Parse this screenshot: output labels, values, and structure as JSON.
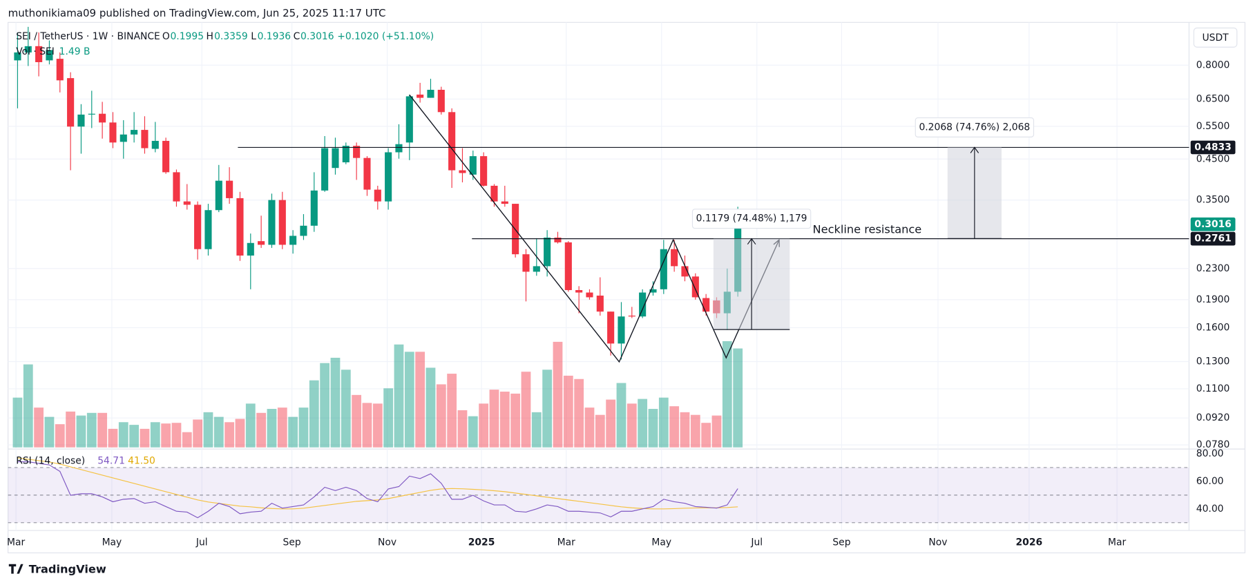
{
  "header": "muthonikiama09 published on TradingView.com, Jun 25, 2025 11:17 UTC",
  "footer": "TradingView",
  "chart_data": {
    "type": "candlestick",
    "title": "SEI / TetherUS · 1W · BINANCE",
    "legend_keys": [
      "O",
      "H",
      "L",
      "C"
    ],
    "change_label": "+0.1020 (+51.10%)",
    "currency": "USDT",
    "up_color": "#089981",
    "down_color": "#f23645",
    "log_scale": true,
    "grid": true,
    "categories": [
      null,
      null,
      null,
      null,
      null,
      null,
      null,
      null,
      null,
      null,
      null,
      null,
      null,
      null,
      null,
      null,
      null,
      null,
      null,
      null,
      null,
      null,
      null,
      null,
      null,
      null,
      null,
      null,
      null,
      null,
      null,
      null,
      null,
      null,
      null,
      null,
      null,
      null,
      null,
      null,
      null,
      null,
      null,
      null,
      null,
      null,
      null,
      null,
      null,
      null,
      null,
      null,
      null,
      null,
      null,
      null,
      null,
      null,
      null,
      null,
      null,
      null,
      null,
      null,
      null,
      null,
      null,
      null,
      null
    ],
    "open": [
      0.824,
      0.865,
      0.899,
      0.824,
      0.832,
      0.739,
      0.549,
      0.591,
      0.594,
      0.563,
      0.5,
      0.523,
      0.538,
      0.479,
      0.503,
      0.415,
      0.347,
      0.34,
      0.259,
      0.329,
      0.394,
      0.354,
      0.249,
      0.272,
      0.266,
      0.35,
      0.266,
      0.281,
      0.299,
      0.371,
      0.426,
      0.441,
      0.488,
      0.453,
      0.373,
      0.347,
      0.469,
      0.498,
      0.668,
      0.655,
      0.688,
      0.6,
      0.42,
      0.409,
      0.458,
      0.382,
      0.347,
      0.342,
      0.251,
      0.2255,
      0.2333,
      0.278,
      0.27,
      0.2015,
      0.1985,
      0.1948,
      0.1766,
      0.1452,
      0.1723,
      0.1714,
      0.1985,
      0.2025,
      0.259,
      0.2333,
      0.219,
      0.1919,
      0.1891,
      0.1748,
      0.1995
    ],
    "high": [
      0.978,
      1.012,
      0.978,
      0.931,
      0.865,
      0.766,
      0.63,
      0.684,
      0.639,
      0.6,
      0.571,
      0.6,
      0.585,
      0.565,
      0.513,
      0.422,
      0.386,
      0.347,
      0.342,
      0.434,
      0.428,
      0.368,
      0.285,
      0.318,
      0.364,
      0.368,
      0.291,
      0.321,
      0.415,
      0.518,
      0.513,
      0.498,
      0.498,
      0.458,
      0.382,
      0.481,
      0.557,
      0.668,
      0.718,
      0.736,
      0.701,
      0.614,
      0.481,
      0.474,
      0.469,
      0.386,
      0.382,
      0.342,
      0.259,
      0.277,
      0.291,
      0.288,
      0.272,
      0.2064,
      0.2025,
      0.2179,
      0.1766,
      0.1872,
      0.1818,
      0.2025,
      0.2127,
      0.2742,
      0.2742,
      0.249,
      0.2233,
      0.1967,
      0.1928,
      0.2299,
      0.3359
    ],
    "low": [
      0.614,
      0.796,
      0.747,
      0.804,
      0.677,
      0.42,
      0.465,
      0.544,
      0.51,
      0.481,
      0.451,
      0.498,
      0.465,
      0.469,
      0.411,
      0.336,
      0.33,
      0.243,
      0.249,
      0.325,
      0.342,
      0.241,
      0.2025,
      0.261,
      0.261,
      0.259,
      0.252,
      0.274,
      0.288,
      0.368,
      0.409,
      0.436,
      0.396,
      0.359,
      0.33,
      0.33,
      0.451,
      0.447,
      0.636,
      0.655,
      0.591,
      0.377,
      0.39,
      0.396,
      0.38,
      0.336,
      0.336,
      0.246,
      0.188,
      0.22,
      0.219,
      0.268,
      0.1995,
      0.1748,
      0.19,
      0.1723,
      0.1349,
      0.1317,
      0.1697,
      0.1697,
      0.1948,
      0.1967,
      0.2255,
      0.2127,
      0.19,
      0.1723,
      0.1697,
      0.1578,
      0.1936
    ],
    "close": [
      0.865,
      0.899,
      0.815,
      0.878,
      0.729,
      0.549,
      0.591,
      0.594,
      0.563,
      0.498,
      0.523,
      0.538,
      0.481,
      0.503,
      0.415,
      0.347,
      0.34,
      0.259,
      0.329,
      0.394,
      0.354,
      0.249,
      0.269,
      0.266,
      0.35,
      0.266,
      0.281,
      0.299,
      0.371,
      0.481,
      0.481,
      0.488,
      0.453,
      0.373,
      0.347,
      0.469,
      0.493,
      0.661,
      0.655,
      0.688,
      0.6,
      0.42,
      0.413,
      0.458,
      0.382,
      0.347,
      0.342,
      0.251,
      0.2255,
      0.2333,
      0.278,
      0.27,
      0.2015,
      0.1985,
      0.1928,
      0.1766,
      0.1452,
      0.1714,
      0.1714,
      0.1985,
      0.2025,
      0.259,
      0.2333,
      0.219,
      0.1928,
      0.1766,
      0.1748,
      0.1995,
      0.3016
    ],
    "ylim": [
      0.0768,
      1.03
    ],
    "yticks": [
      {
        "value": 0.078,
        "label": "0.0780"
      },
      {
        "value": 0.092,
        "label": "0.0920"
      },
      {
        "value": 0.11,
        "label": "0.1100"
      },
      {
        "value": 0.13,
        "label": "0.1300"
      },
      {
        "value": 0.16,
        "label": "0.1600"
      },
      {
        "value": 0.19,
        "label": "0.1900"
      },
      {
        "value": 0.23,
        "label": "0.2300"
      },
      {
        "value": 0.35,
        "label": "0.3500"
      },
      {
        "value": 0.45,
        "label": "0.4500"
      },
      {
        "value": 0.55,
        "label": "0.5500"
      },
      {
        "value": 0.65,
        "label": "0.6500"
      },
      {
        "value": 0.8,
        "label": "0.8000"
      }
    ],
    "xlim": [
      -0.9,
      110.6
    ],
    "xticks": [
      {
        "value": -0.15,
        "label": "Mar"
      },
      {
        "value": 8.9,
        "label": "May"
      },
      {
        "value": 17.4,
        "label": "Jul"
      },
      {
        "value": 25.9,
        "label": "Sep"
      },
      {
        "value": 34.9,
        "label": "Nov"
      },
      {
        "value": 43.8,
        "label": "2025"
      },
      {
        "value": 51.8,
        "label": "Mar"
      },
      {
        "value": 60.8,
        "label": "May"
      },
      {
        "value": 69.8,
        "label": "Jul"
      },
      {
        "value": 77.8,
        "label": "Sep"
      },
      {
        "value": 86.9,
        "label": "Nov"
      },
      {
        "value": 95.5,
        "label": "2026"
      },
      {
        "value": 103.8,
        "label": "Mar"
      }
    ],
    "volume": {
      "name": "Vol · SEI",
      "value_label": "1.49 B",
      "values": [
        0.75,
        1.25,
        0.6,
        0.46,
        0.35,
        0.54,
        0.48,
        0.52,
        0.52,
        0.28,
        0.38,
        0.34,
        0.28,
        0.38,
        0.36,
        0.37,
        0.23,
        0.42,
        0.53,
        0.46,
        0.38,
        0.43,
        0.66,
        0.52,
        0.58,
        0.6,
        0.46,
        0.6,
        1.01,
        1.27,
        1.35,
        1.17,
        0.79,
        0.67,
        0.66,
        0.89,
        1.55,
        1.44,
        1.44,
        1.2,
        0.95,
        1.11,
        0.56,
        0.47,
        0.66,
        0.87,
        0.84,
        0.81,
        1.14,
        0.53,
        1.17,
        1.59,
        1.08,
        1.03,
        0.6,
        0.49,
        0.72,
        0.97,
        0.66,
        0.73,
        0.58,
        0.75,
        0.62,
        0.53,
        0.49,
        0.37,
        0.48,
        1.6,
        1.49
      ]
    },
    "rsi": {
      "name": "RSI (14, close)",
      "color": "#7e57c2",
      "values": [
        74.2,
        74.2,
        73.0,
        71.9,
        67.2,
        49.9,
        51.0,
        51.0,
        48.7,
        45.2,
        47.0,
        47.5,
        44.1,
        45.2,
        41.7,
        38.3,
        37.7,
        33.6,
        38.3,
        44.1,
        41.7,
        36.5,
        37.7,
        38.3,
        44.1,
        40.6,
        41.7,
        42.9,
        48.7,
        55.7,
        53.3,
        55.7,
        53.3,
        47.5,
        45.2,
        54.5,
        56.2,
        63.8,
        62.0,
        65.5,
        58.6,
        47.0,
        47.0,
        49.9,
        45.8,
        42.9,
        42.9,
        38.3,
        37.7,
        40.0,
        42.9,
        41.7,
        38.3,
        38.3,
        37.7,
        37.1,
        34.2,
        38.3,
        38.3,
        40.0,
        41.7,
        47.0,
        45.2,
        44.1,
        41.7,
        41.2,
        40.6,
        42.9,
        54.71
      ],
      "ma": {
        "color": "#f5c242",
        "value_label": "41.50",
        "values": [
          77,
          76,
          75,
          74,
          72.5,
          70.5,
          68.5,
          66.5,
          64.5,
          62.5,
          60.5,
          58.5,
          56.5,
          54.5,
          52.5,
          50.5,
          48.5,
          46.5,
          45,
          44,
          43,
          42,
          41.5,
          40.8,
          40.3,
          40,
          40,
          40.5,
          41.5,
          42.5,
          43.5,
          44.5,
          45.5,
          46,
          46.5,
          47.5,
          49,
          50.5,
          52,
          53.5,
          54.5,
          54.8,
          54.6,
          54.2,
          53.8,
          53.2,
          52.5,
          51.5,
          50.5,
          49.5,
          48.5,
          47.5,
          46.5,
          45.5,
          44.5,
          43.5,
          42.5,
          41.5,
          40.8,
          40.3,
          40,
          40,
          40.2,
          40.5,
          40.7,
          40.8,
          40.8,
          41,
          41.5
        ]
      },
      "ylim": [
        25.5,
        81.7
      ],
      "yticks": [
        {
          "value": 80,
          "label": "80.00"
        },
        {
          "value": 60,
          "label": "60.00"
        },
        {
          "value": 40,
          "label": "40.00"
        }
      ],
      "levels": [
        70,
        50,
        30
      ]
    },
    "levels": [
      {
        "value": 0.4833,
        "x_start": 20.8
      },
      {
        "value": 0.2761,
        "x_start": 42.9
      }
    ],
    "pattern": {
      "x": [
        37.0,
        56.8,
        61.9,
        66.9,
        71.9
      ],
      "y": [
        0.667,
        0.1298,
        0.2742,
        0.133,
        0.2742
      ]
    },
    "measures": [
      {
        "x": [
          65.7,
          72.9
        ],
        "from": 0.1582,
        "to": 0.2761,
        "label": "0.1179 (74.48%) 1,179"
      },
      {
        "x": [
          87.8,
          92.9
        ],
        "from": 0.2765,
        "to": 0.4833,
        "label": "0.2068 (74.76%) 2,068"
      }
    ],
    "annotation": "Neckline resistance"
  }
}
